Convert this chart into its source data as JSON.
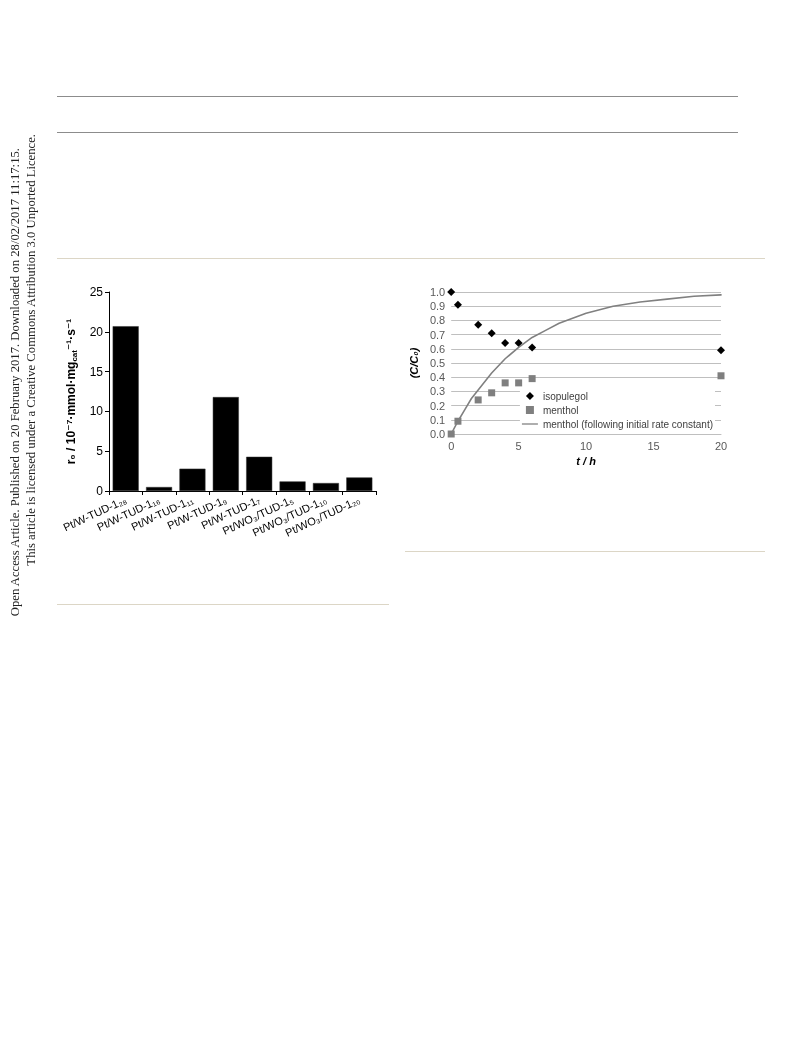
{
  "chart_data": [
    {
      "type": "bar",
      "categories": [
        "Pt/W-TUD-1₂₈",
        "Pt/W-TUD-1₁₆",
        "Pt/W-TUD-1₁₁",
        "Pt/W-TUD-1₉",
        "Pt/W-TUD-1₇",
        "Pt/WO₃/TUD-1₅",
        "Pt/WO₃/TUD-1₁₀",
        "Pt/WO₃/TUD-1₂₀"
      ],
      "values": [
        20.7,
        0.5,
        2.8,
        11.8,
        4.3,
        1.2,
        1.0,
        1.7
      ],
      "color": "#000000",
      "ylabel": "r₀ / 10⁻⁷·mmol·mg$_{cat}$⁻¹·s⁻¹",
      "ylim": [
        0,
        25
      ],
      "yticks": [
        0,
        5,
        10,
        15,
        20,
        25
      ],
      "annotations": [
        "Open Access Article. Published on 20 February 2017. Downloaded on 28/02/2017 11:17:15.",
        "This article is licensed under a Creative Commons Attribution 3.0 Unported Licence."
      ]
    },
    {
      "type": "scatter",
      "xlabel": "t / h",
      "ylabel": "(C/C₀)",
      "xlim": [
        0,
        20
      ],
      "xticks": [
        0,
        5,
        10,
        15,
        20
      ],
      "ylim": [
        0,
        1
      ],
      "yticks": [
        {
          "value": 0,
          "label": "0.0"
        },
        0.1,
        0.2,
        0.3,
        0.4,
        0.5,
        0.6,
        0.7,
        0.8,
        0.9,
        {
          "value": 1,
          "label": "1.0"
        }
      ],
      "grid": "y",
      "legend": "bottom right",
      "series": [
        {
          "name": "isopulegol",
          "type": "scatter",
          "marker": "diamond",
          "color": "#000000",
          "x": [
            0,
            0.5,
            2,
            3,
            4,
            5,
            6,
            20
          ],
          "values": [
            1.0,
            0.91,
            0.77,
            0.71,
            0.64,
            0.64,
            0.61,
            0.59
          ]
        },
        {
          "name": "menthol",
          "type": "scatter",
          "marker": "square",
          "color": "#7f7f7f",
          "x": [
            0,
            0.5,
            2,
            3,
            4,
            5,
            6,
            20
          ],
          "values": [
            0,
            0.09,
            0.24,
            0.29,
            0.36,
            0.36,
            0.39,
            0.41
          ]
        },
        {
          "name": "menthol (following initial rate constant)",
          "type": "line",
          "marker": "none",
          "line_style": "solid",
          "color": "#808080",
          "x": [
            0,
            0.5,
            1,
            1.5,
            2,
            3,
            4,
            5,
            6,
            7,
            8,
            10,
            12,
            14,
            16,
            18,
            20
          ],
          "values": [
            0,
            0.09,
            0.17,
            0.25,
            0.31,
            0.43,
            0.53,
            0.61,
            0.68,
            0.73,
            0.78,
            0.85,
            0.9,
            0.93,
            0.95,
            0.97,
            0.98
          ]
        }
      ]
    }
  ]
}
